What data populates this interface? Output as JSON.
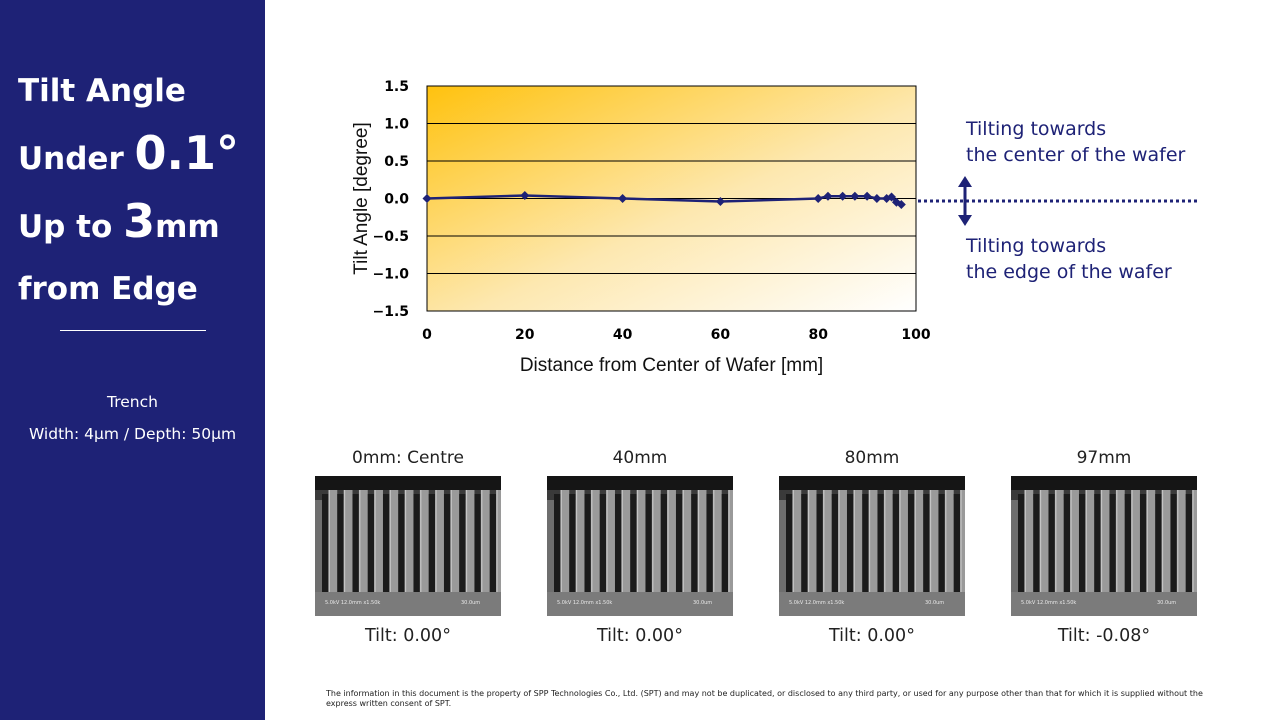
{
  "sidebar": {
    "headline": {
      "line1": "Tilt Angle",
      "line2_prefix": "Under ",
      "line2_big": "0.1°",
      "line3_prefix": "Up to ",
      "line3_big": "3",
      "line3_suffix": "mm",
      "line4": "from Edge"
    },
    "trench_label": "Trench",
    "trench_dims": "Width: 4µm / Depth: 50µm"
  },
  "annotations": {
    "top_line1": "Tilting towards",
    "top_line2": "the center of the wafer",
    "bottom_line1": "Tilting towards",
    "bottom_line2": "the edge of the wafer"
  },
  "chart_data": {
    "type": "line",
    "xlabel": "Distance from Center of Wafer [mm]",
    "ylabel": "Tilt Angle [degree]",
    "xlim": [
      0,
      100
    ],
    "ylim": [
      -1.5,
      1.5
    ],
    "xticks": [
      0,
      20,
      40,
      60,
      80,
      100
    ],
    "xtick_labels": [
      "0",
      "20",
      "40",
      "60",
      "80",
      "100"
    ],
    "yticks": [
      1.5,
      1.0,
      0.5,
      0.0,
      -0.5,
      -1.0,
      -1.5
    ],
    "ytick_labels": [
      "1.5",
      "1.0",
      "0.5",
      "0.0",
      "−0.5",
      "−1.0",
      "−1.5"
    ],
    "grid": "horizontal",
    "colors": {
      "series": "#1e2276",
      "bg_from": "#ffc20e",
      "bg_to": "#ffffff"
    },
    "series": [
      {
        "x": [
          0,
          20,
          40,
          60,
          80,
          82,
          85,
          87.5,
          90,
          92,
          94,
          95,
          96,
          97
        ],
        "y": [
          0.0,
          0.04,
          0.0,
          -0.04,
          0.0,
          0.03,
          0.03,
          0.03,
          0.03,
          0.0,
          0.0,
          0.02,
          -0.05,
          -0.08
        ]
      }
    ]
  },
  "sem_images": [
    {
      "caption": "0mm: Centre",
      "tilt": "Tilt: 0.00°",
      "scale": "5.0kV 12.0mm x1.50k",
      "bar": "30.0um"
    },
    {
      "caption": "40mm",
      "tilt": "Tilt: 0.00°",
      "scale": "5.0kV 12.0mm x1.50k",
      "bar": "30.0um"
    },
    {
      "caption": "80mm",
      "tilt": "Tilt: 0.00°",
      "scale": "5.0kV 12.0mm x1.50k",
      "bar": "30.0um"
    },
    {
      "caption": "97mm",
      "tilt": "Tilt: -0.08°",
      "scale": "5.0kV 12.0mm x1.50k",
      "bar": "30.0um"
    }
  ],
  "footer": "The information in this document is the property of SPP Technologies Co., Ltd. (SPT) and may not be duplicated, or disclosed to any third party, or used for any purpose other than that for which it is supplied without the express written consent of SPT."
}
